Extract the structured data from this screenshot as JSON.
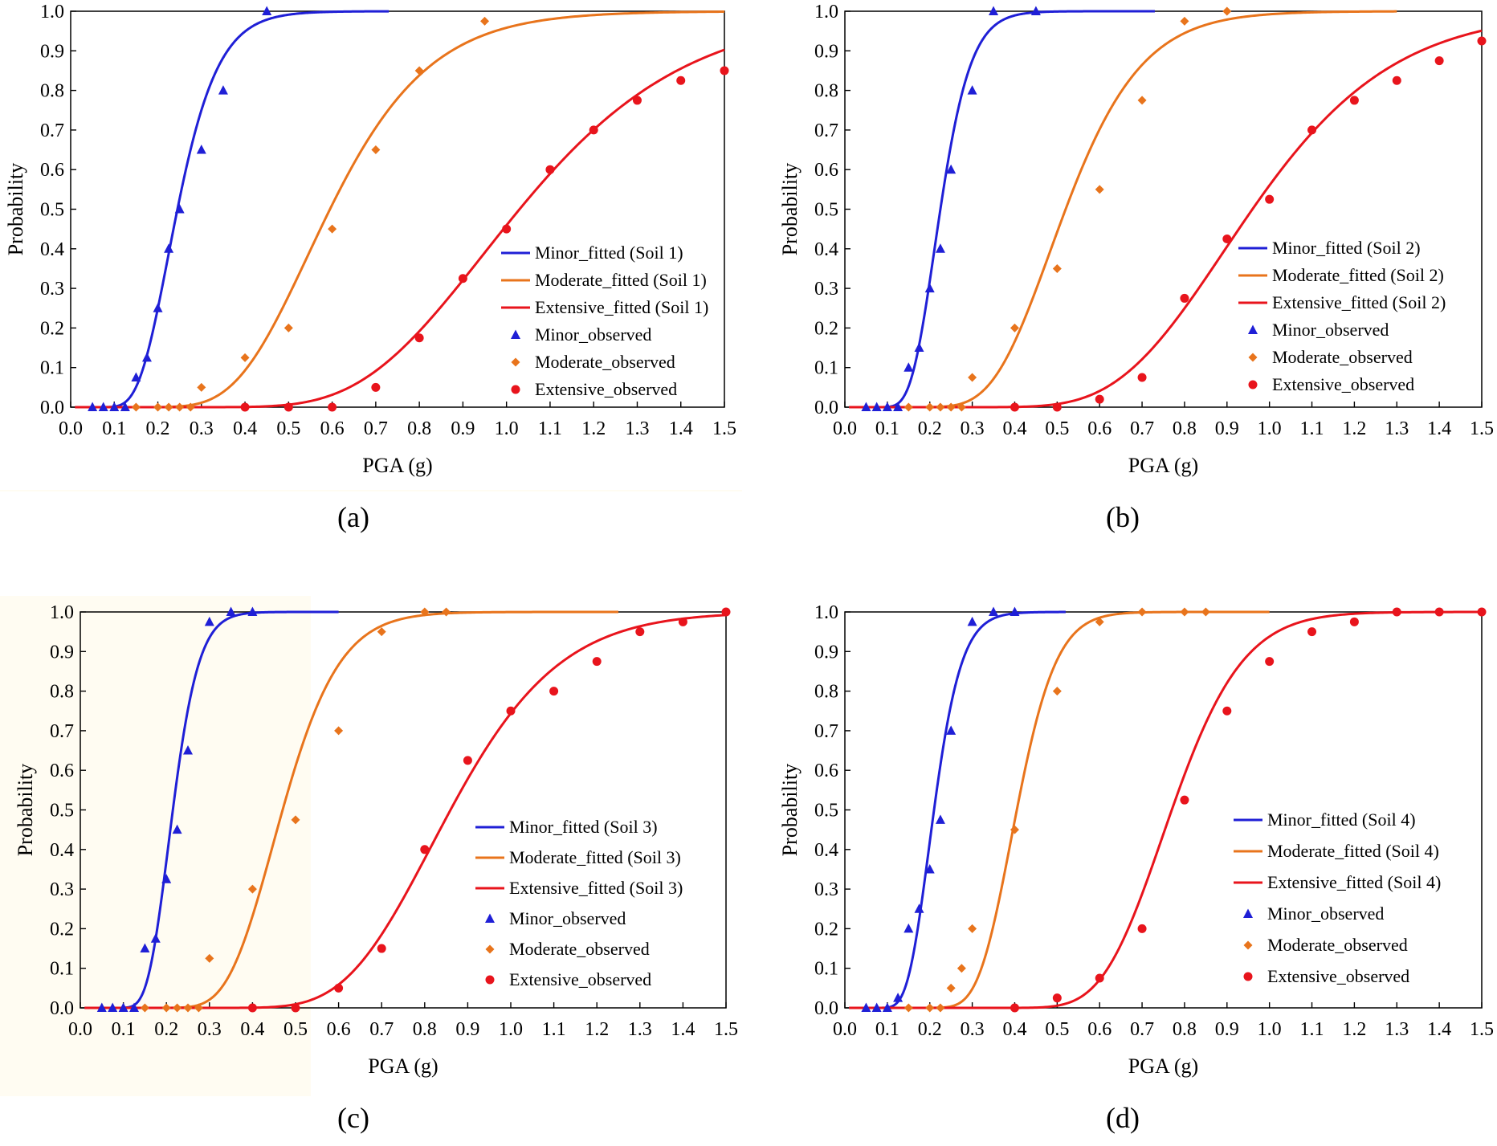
{
  "chart_data": [
    {
      "type": "line",
      "panel_label": "(a)",
      "xlabel": "PGA (g)",
      "ylabel": "Probability",
      "xlim": [
        0,
        1.5
      ],
      "ylim": [
        0,
        1
      ],
      "xticks": [
        "0.0",
        "0.1",
        "0.2",
        "0.3",
        "0.4",
        "0.5",
        "0.6",
        "0.7",
        "0.8",
        "0.9",
        "1.0",
        "1.1",
        "1.2",
        "1.3",
        "1.4",
        "1.5"
      ],
      "yticks": [
        "0.0",
        "0.1",
        "0.2",
        "0.3",
        "0.4",
        "0.5",
        "0.6",
        "0.7",
        "0.8",
        "0.9",
        "1.0"
      ],
      "legend_position": "lower-right",
      "fitted": [
        {
          "name": "Minor_fitted (Soil 1)",
          "color": "#1f1fd6",
          "median": 0.245,
          "beta": 0.3,
          "xmax": 0.73
        },
        {
          "name": "Moderate_fitted (Soil 1)",
          "color": "#e8741c",
          "median": 0.595,
          "beta": 0.3,
          "xmax": 1.5
        },
        {
          "name": "Extensive_fitted (Soil 1)",
          "color": "#e8141c",
          "median": 1.03,
          "beta": 0.29,
          "xmax": 1.5
        }
      ],
      "observed": [
        {
          "name": "Minor_observed",
          "marker": "triangle",
          "color": "#1f1fd6",
          "x": [
            0.05,
            0.075,
            0.1,
            0.125,
            0.15,
            0.175,
            0.2,
            0.225,
            0.25,
            0.3,
            0.35,
            0.45
          ],
          "y": [
            0,
            0,
            0,
            0,
            0.075,
            0.125,
            0.25,
            0.4,
            0.5,
            0.65,
            0.8,
            1.0
          ]
        },
        {
          "name": "Moderate_observed",
          "marker": "diamond",
          "color": "#e8741c",
          "x": [
            0.15,
            0.2,
            0.225,
            0.25,
            0.275,
            0.3,
            0.4,
            0.5,
            0.6,
            0.7,
            0.8,
            0.95
          ],
          "y": [
            0,
            0,
            0,
            0,
            0,
            0.05,
            0.125,
            0.2,
            0.45,
            0.65,
            0.85,
            0.975
          ]
        },
        {
          "name": "Extensive_observed",
          "marker": "circle",
          "color": "#e8141c",
          "x": [
            0.4,
            0.5,
            0.6,
            0.7,
            0.8,
            0.9,
            1.0,
            1.1,
            1.2,
            1.3,
            1.4,
            1.5
          ],
          "y": [
            0,
            0,
            0,
            0.05,
            0.175,
            0.325,
            0.45,
            0.6,
            0.7,
            0.775,
            0.825,
            0.85
          ]
        }
      ]
    },
    {
      "type": "line",
      "panel_label": "(b)",
      "xlabel": "PGA (g)",
      "ylabel": "Probability",
      "xlim": [
        0,
        1.5
      ],
      "ylim": [
        0,
        1
      ],
      "xticks": [
        "0.0",
        "0.1",
        "0.2",
        "0.3",
        "0.4",
        "0.5",
        "0.6",
        "0.7",
        "0.8",
        "0.9",
        "1.0",
        "1.1",
        "1.2",
        "1.3",
        "1.4",
        "1.5"
      ],
      "yticks": [
        "0.0",
        "0.1",
        "0.2",
        "0.3",
        "0.4",
        "0.5",
        "0.6",
        "0.7",
        "0.8",
        "0.9",
        "1.0"
      ],
      "legend_position": "lower-right",
      "fitted": [
        {
          "name": "Minor_fitted (Soil 2)",
          "color": "#1f1fd6",
          "median": 0.225,
          "beta": 0.25,
          "xmax": 0.73
        },
        {
          "name": "Moderate_fitted (Soil 2)",
          "color": "#e8741c",
          "median": 0.52,
          "beta": 0.27,
          "xmax": 1.3
        },
        {
          "name": "Extensive_fitted (Soil 2)",
          "color": "#e8141c",
          "median": 0.96,
          "beta": 0.27,
          "xmax": 1.5
        }
      ],
      "observed": [
        {
          "name": "Minor_observed",
          "marker": "triangle",
          "color": "#1f1fd6",
          "x": [
            0.05,
            0.075,
            0.1,
            0.125,
            0.15,
            0.175,
            0.2,
            0.225,
            0.25,
            0.3,
            0.35,
            0.45
          ],
          "y": [
            0,
            0,
            0,
            0,
            0.1,
            0.15,
            0.3,
            0.4,
            0.6,
            0.8,
            1.0,
            1.0
          ]
        },
        {
          "name": "Moderate_observed",
          "marker": "diamond",
          "color": "#e8741c",
          "x": [
            0.15,
            0.2,
            0.225,
            0.25,
            0.275,
            0.3,
            0.4,
            0.5,
            0.6,
            0.7,
            0.8,
            0.9
          ],
          "y": [
            0,
            0,
            0,
            0,
            0,
            0.075,
            0.2,
            0.35,
            0.55,
            0.775,
            0.975,
            1.0
          ]
        },
        {
          "name": "Extensive_observed",
          "marker": "circle",
          "color": "#e8141c",
          "x": [
            0.4,
            0.5,
            0.6,
            0.7,
            0.8,
            0.9,
            1.0,
            1.1,
            1.2,
            1.3,
            1.4,
            1.5
          ],
          "y": [
            0,
            0,
            0.02,
            0.075,
            0.275,
            0.425,
            0.525,
            0.7,
            0.775,
            0.825,
            0.875,
            0.925
          ]
        }
      ]
    },
    {
      "type": "line",
      "panel_label": "(c)",
      "xlabel": "PGA (g)",
      "ylabel": "Probability",
      "xlim": [
        0,
        1.5
      ],
      "ylim": [
        0,
        1
      ],
      "xticks": [
        "0.0",
        "0.1",
        "0.2",
        "0.3",
        "0.4",
        "0.5",
        "0.6",
        "0.7",
        "0.8",
        "0.9",
        "1.0",
        "1.1",
        "1.2",
        "1.3",
        "1.4",
        "1.5"
      ],
      "yticks": [
        "0.0",
        "0.1",
        "0.2",
        "0.3",
        "0.4",
        "0.5",
        "0.6",
        "0.7",
        "0.8",
        "0.9",
        "1.0"
      ],
      "legend_position": "lower-right",
      "fitted": [
        {
          "name": "Minor_fitted (Soil 3)",
          "color": "#1f1fd6",
          "median": 0.215,
          "beta": 0.22,
          "xmax": 0.6
        },
        {
          "name": "Moderate_fitted (Soil 3)",
          "color": "#e8741c",
          "median": 0.47,
          "beta": 0.22,
          "xmax": 1.25
        },
        {
          "name": "Extensive_fitted (Soil 3)",
          "color": "#e8141c",
          "median": 0.86,
          "beta": 0.23,
          "xmax": 1.5
        }
      ],
      "observed": [
        {
          "name": "Minor_observed",
          "marker": "triangle",
          "color": "#1f1fd6",
          "x": [
            0.05,
            0.075,
            0.1,
            0.125,
            0.15,
            0.175,
            0.2,
            0.225,
            0.25,
            0.3,
            0.35,
            0.4
          ],
          "y": [
            0,
            0,
            0,
            0,
            0.15,
            0.175,
            0.325,
            0.45,
            0.65,
            0.975,
            1.0,
            1.0
          ]
        },
        {
          "name": "Moderate_observed",
          "marker": "diamond",
          "color": "#e8741c",
          "x": [
            0.15,
            0.2,
            0.225,
            0.25,
            0.275,
            0.3,
            0.4,
            0.5,
            0.6,
            0.7,
            0.8,
            0.85
          ],
          "y": [
            0,
            0,
            0,
            0,
            0,
            0.125,
            0.3,
            0.475,
            0.7,
            0.95,
            1.0,
            1.0
          ]
        },
        {
          "name": "Extensive_observed",
          "marker": "circle",
          "color": "#e8141c",
          "x": [
            0.4,
            0.5,
            0.6,
            0.7,
            0.8,
            0.9,
            1.0,
            1.1,
            1.2,
            1.3,
            1.4,
            1.5
          ],
          "y": [
            0,
            0,
            0.05,
            0.15,
            0.4,
            0.625,
            0.75,
            0.8,
            0.875,
            0.95,
            0.975,
            1.0
          ]
        }
      ]
    },
    {
      "type": "line",
      "panel_label": "(d)",
      "xlabel": "PGA (g)",
      "ylabel": "Probability",
      "xlim": [
        0,
        1.5
      ],
      "ylim": [
        0,
        1
      ],
      "xticks": [
        "0.0",
        "0.1",
        "0.2",
        "0.3",
        "0.4",
        "0.5",
        "0.6",
        "0.7",
        "0.8",
        "0.9",
        "1.0",
        "1.1",
        "1.2",
        "1.3",
        "1.4",
        "1.5"
      ],
      "yticks": [
        "0.0",
        "0.1",
        "0.2",
        "0.3",
        "0.4",
        "0.5",
        "0.6",
        "0.7",
        "0.8",
        "0.9",
        "1.0"
      ],
      "legend_position": "center-right",
      "fitted": [
        {
          "name": "Minor_fitted (Soil 4)",
          "color": "#1f1fd6",
          "median": 0.21,
          "beta": 0.24,
          "xmax": 0.52
        },
        {
          "name": "Moderate_fitted (Soil 4)",
          "color": "#e8741c",
          "median": 0.405,
          "beta": 0.18,
          "xmax": 1.0
        },
        {
          "name": "Extensive_fitted (Soil 4)",
          "color": "#e8141c",
          "median": 0.77,
          "beta": 0.17,
          "xmax": 1.5
        }
      ],
      "observed": [
        {
          "name": "Minor_observed",
          "marker": "triangle",
          "color": "#1f1fd6",
          "x": [
            0.05,
            0.075,
            0.1,
            0.125,
            0.15,
            0.175,
            0.2,
            0.225,
            0.25,
            0.3,
            0.35,
            0.4
          ],
          "y": [
            0,
            0,
            0,
            0.025,
            0.2,
            0.25,
            0.35,
            0.475,
            0.7,
            0.975,
            1.0,
            1.0
          ]
        },
        {
          "name": "Moderate_observed",
          "marker": "diamond",
          "color": "#e8741c",
          "x": [
            0.15,
            0.2,
            0.225,
            0.25,
            0.275,
            0.3,
            0.4,
            0.5,
            0.6,
            0.7,
            0.8,
            0.85
          ],
          "y": [
            0,
            0,
            0,
            0.05,
            0.1,
            0.2,
            0.45,
            0.8,
            0.975,
            1.0,
            1.0,
            1.0
          ]
        },
        {
          "name": "Extensive_observed",
          "marker": "circle",
          "color": "#e8141c",
          "x": [
            0.4,
            0.5,
            0.6,
            0.7,
            0.8,
            0.9,
            1.0,
            1.1,
            1.2,
            1.3,
            1.4,
            1.5
          ],
          "y": [
            0,
            0.025,
            0.075,
            0.2,
            0.525,
            0.75,
            0.875,
            0.95,
            0.975,
            1.0,
            1.0,
            1.0
          ]
        }
      ]
    }
  ]
}
